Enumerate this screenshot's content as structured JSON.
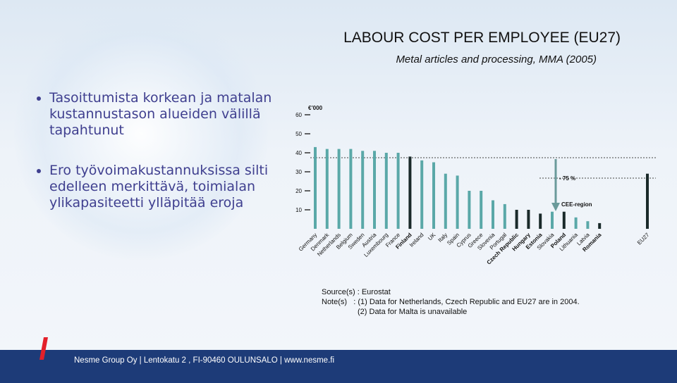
{
  "slide": {
    "title": "LABOUR COST PER EMPLOYEE (EU27)",
    "subtitle": "Metal articles and processing, MMA (2005)",
    "bullets": [
      "Tasoittumista korkean ja matalan kustannustason alueiden välillä tapahtunut",
      "Ero työvoimakustannuksissa silti edelleen merkittävä, toimialan ylikapasiteetti ylläpitää eroja"
    ],
    "source": [
      "Source(s) : Eurostat",
      "Note(s)",
      ": (1) Data for Netherlands, Czech Republic and EU27 are in 2004.",
      "(2) Data for Malta is unavailable"
    ],
    "footer": "Nesme Group Oy  |  Lentokatu 2 , FI-90460 OULUNSALO  |  www.nesme.fi"
  },
  "chart_data": {
    "type": "bar",
    "y_label": "€’000",
    "annotations": [
      "- 75 %",
      "CEE-region"
    ],
    "categories": [
      "Germany",
      "Denmark",
      "Netherlands",
      "Belgium",
      "Sweden",
      "Austria",
      "Luxembourg",
      "France",
      "Finland",
      "Ireland",
      "UK",
      "Italy",
      "Spain",
      "Cyprus",
      "Greece",
      "Slovenia",
      "Portugal",
      "Czech Republic",
      "Hungary",
      "Estonia",
      "Slovakia",
      "Poland",
      "Lithuania",
      "Latvia",
      "Romania",
      "EU27"
    ],
    "values": [
      43,
      42,
      42,
      42,
      41,
      41,
      40,
      40,
      38,
      36,
      35,
      29,
      28,
      20,
      20,
      15,
      13,
      10,
      10,
      8,
      9,
      9,
      6,
      4,
      3,
      29
    ],
    "colors": [
      "#5aa8a8",
      "#5aa8a8",
      "#5aa8a8",
      "#5aa8a8",
      "#5aa8a8",
      "#5aa8a8",
      "#5aa8a8",
      "#5aa8a8",
      "#1a2a2a",
      "#5aa8a8",
      "#5aa8a8",
      "#5aa8a8",
      "#5aa8a8",
      "#5aa8a8",
      "#5aa8a8",
      "#5aa8a8",
      "#5aa8a8",
      "#1a2a2a",
      "#1a2a2a",
      "#1a2a2a",
      "#5aa8a8",
      "#1a2a2a",
      "#5aa8a8",
      "#5aa8a8",
      "#1a2a2a",
      "#1a2a2a"
    ],
    "bold": [
      false,
      false,
      false,
      false,
      false,
      false,
      false,
      false,
      true,
      false,
      false,
      false,
      false,
      false,
      false,
      false,
      false,
      true,
      true,
      true,
      false,
      true,
      false,
      false,
      true,
      false
    ],
    "ylim": [
      0,
      60
    ],
    "yticks": [
      10,
      20,
      30,
      40,
      50,
      60
    ]
  }
}
